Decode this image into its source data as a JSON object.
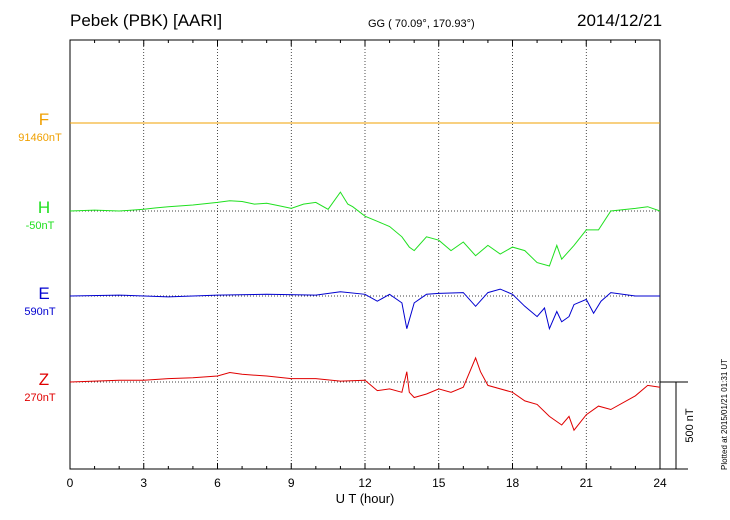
{
  "header": {
    "station": "Pebek (PBK)  [AARI]",
    "coords": "GG ( 70.09°, 170.93°)",
    "date": "2014/12/21"
  },
  "plotted_note": "Plotted at 2015/01/21 01:31  UT",
  "colors": {
    "F": "#f0a000",
    "H": "#20e020",
    "E": "#0000d0",
    "Z": "#e00000"
  },
  "chart_data": {
    "type": "line",
    "title": "Pebek (PBK)  [AARI]",
    "xlabel": "U T (hour)",
    "xlim": [
      0,
      24
    ],
    "xticks": [
      "0",
      "3",
      "6",
      "9",
      "12",
      "15",
      "18",
      "21",
      "24"
    ],
    "scale_bar": "500 nT",
    "grid": true,
    "series": [
      {
        "name": "F",
        "baseline_label": "91460nT",
        "points": [
          [
            0,
            0
          ],
          [
            6,
            0
          ],
          [
            12,
            0
          ],
          [
            18,
            0
          ],
          [
            24,
            0
          ]
        ]
      },
      {
        "name": "H",
        "baseline_label": "-50nT",
        "points": [
          [
            0,
            0
          ],
          [
            1,
            5
          ],
          [
            2,
            0
          ],
          [
            3,
            10
          ],
          [
            3.5,
            18
          ],
          [
            4,
            25
          ],
          [
            5,
            35
          ],
          [
            6,
            50
          ],
          [
            6.5,
            60
          ],
          [
            7,
            55
          ],
          [
            7.5,
            40
          ],
          [
            8,
            45
          ],
          [
            8.5,
            30
          ],
          [
            9,
            15
          ],
          [
            9.5,
            40
          ],
          [
            10,
            50
          ],
          [
            10.5,
            10
          ],
          [
            11,
            110
          ],
          [
            11.3,
            40
          ],
          [
            11.5,
            25
          ],
          [
            12,
            -30
          ],
          [
            12.5,
            -60
          ],
          [
            13,
            -90
          ],
          [
            13.5,
            -150
          ],
          [
            13.8,
            -210
          ],
          [
            14,
            -230
          ],
          [
            14.5,
            -150
          ],
          [
            15,
            -170
          ],
          [
            15.5,
            -230
          ],
          [
            16,
            -180
          ],
          [
            16.5,
            -260
          ],
          [
            17,
            -200
          ],
          [
            17.5,
            -250
          ],
          [
            18,
            -210
          ],
          [
            18.5,
            -230
          ],
          [
            19,
            -300
          ],
          [
            19.5,
            -320
          ],
          [
            19.8,
            -200
          ],
          [
            20,
            -280
          ],
          [
            20.5,
            -200
          ],
          [
            21,
            -110
          ],
          [
            21.5,
            -110
          ],
          [
            22,
            0
          ],
          [
            23,
            15
          ],
          [
            23.5,
            25
          ],
          [
            24,
            0
          ]
        ]
      },
      {
        "name": "E",
        "baseline_label": "590nT",
        "points": [
          [
            0,
            0
          ],
          [
            2,
            5
          ],
          [
            4,
            -5
          ],
          [
            6,
            5
          ],
          [
            8,
            10
          ],
          [
            10,
            5
          ],
          [
            11,
            25
          ],
          [
            12,
            10
          ],
          [
            12.5,
            -30
          ],
          [
            13,
            10
          ],
          [
            13.5,
            -40
          ],
          [
            13.7,
            -190
          ],
          [
            14,
            -40
          ],
          [
            14.5,
            10
          ],
          [
            15,
            15
          ],
          [
            16,
            20
          ],
          [
            16.5,
            -60
          ],
          [
            17,
            20
          ],
          [
            17.5,
            40
          ],
          [
            18,
            10
          ],
          [
            18.5,
            -60
          ],
          [
            19,
            -120
          ],
          [
            19.3,
            -70
          ],
          [
            19.5,
            -190
          ],
          [
            19.8,
            -90
          ],
          [
            20,
            -150
          ],
          [
            20.3,
            -120
          ],
          [
            20.5,
            -50
          ],
          [
            21,
            -20
          ],
          [
            21.3,
            -100
          ],
          [
            21.6,
            -30
          ],
          [
            22,
            20
          ],
          [
            23,
            0
          ],
          [
            24,
            0
          ]
        ]
      },
      {
        "name": "Z",
        "baseline_label": "270nT",
        "points": [
          [
            0,
            0
          ],
          [
            2,
            10
          ],
          [
            3,
            10
          ],
          [
            4,
            20
          ],
          [
            5,
            25
          ],
          [
            6,
            35
          ],
          [
            6.5,
            55
          ],
          [
            7,
            45
          ],
          [
            8,
            35
          ],
          [
            9,
            20
          ],
          [
            10,
            20
          ],
          [
            11,
            5
          ],
          [
            12,
            10
          ],
          [
            12.5,
            -50
          ],
          [
            13,
            -40
          ],
          [
            13.5,
            -60
          ],
          [
            13.7,
            60
          ],
          [
            13.8,
            -60
          ],
          [
            14,
            -90
          ],
          [
            14.5,
            -70
          ],
          [
            15,
            -40
          ],
          [
            15.5,
            -60
          ],
          [
            16,
            -30
          ],
          [
            16.5,
            140
          ],
          [
            16.7,
            60
          ],
          [
            17,
            -20
          ],
          [
            18,
            -60
          ],
          [
            18.5,
            -110
          ],
          [
            19,
            -130
          ],
          [
            19.5,
            -200
          ],
          [
            20,
            -250
          ],
          [
            20.3,
            -200
          ],
          [
            20.5,
            -280
          ],
          [
            21,
            -190
          ],
          [
            21.5,
            -140
          ],
          [
            22,
            -160
          ],
          [
            23,
            -80
          ],
          [
            23.5,
            -20
          ],
          [
            24,
            -30
          ]
        ]
      }
    ]
  }
}
